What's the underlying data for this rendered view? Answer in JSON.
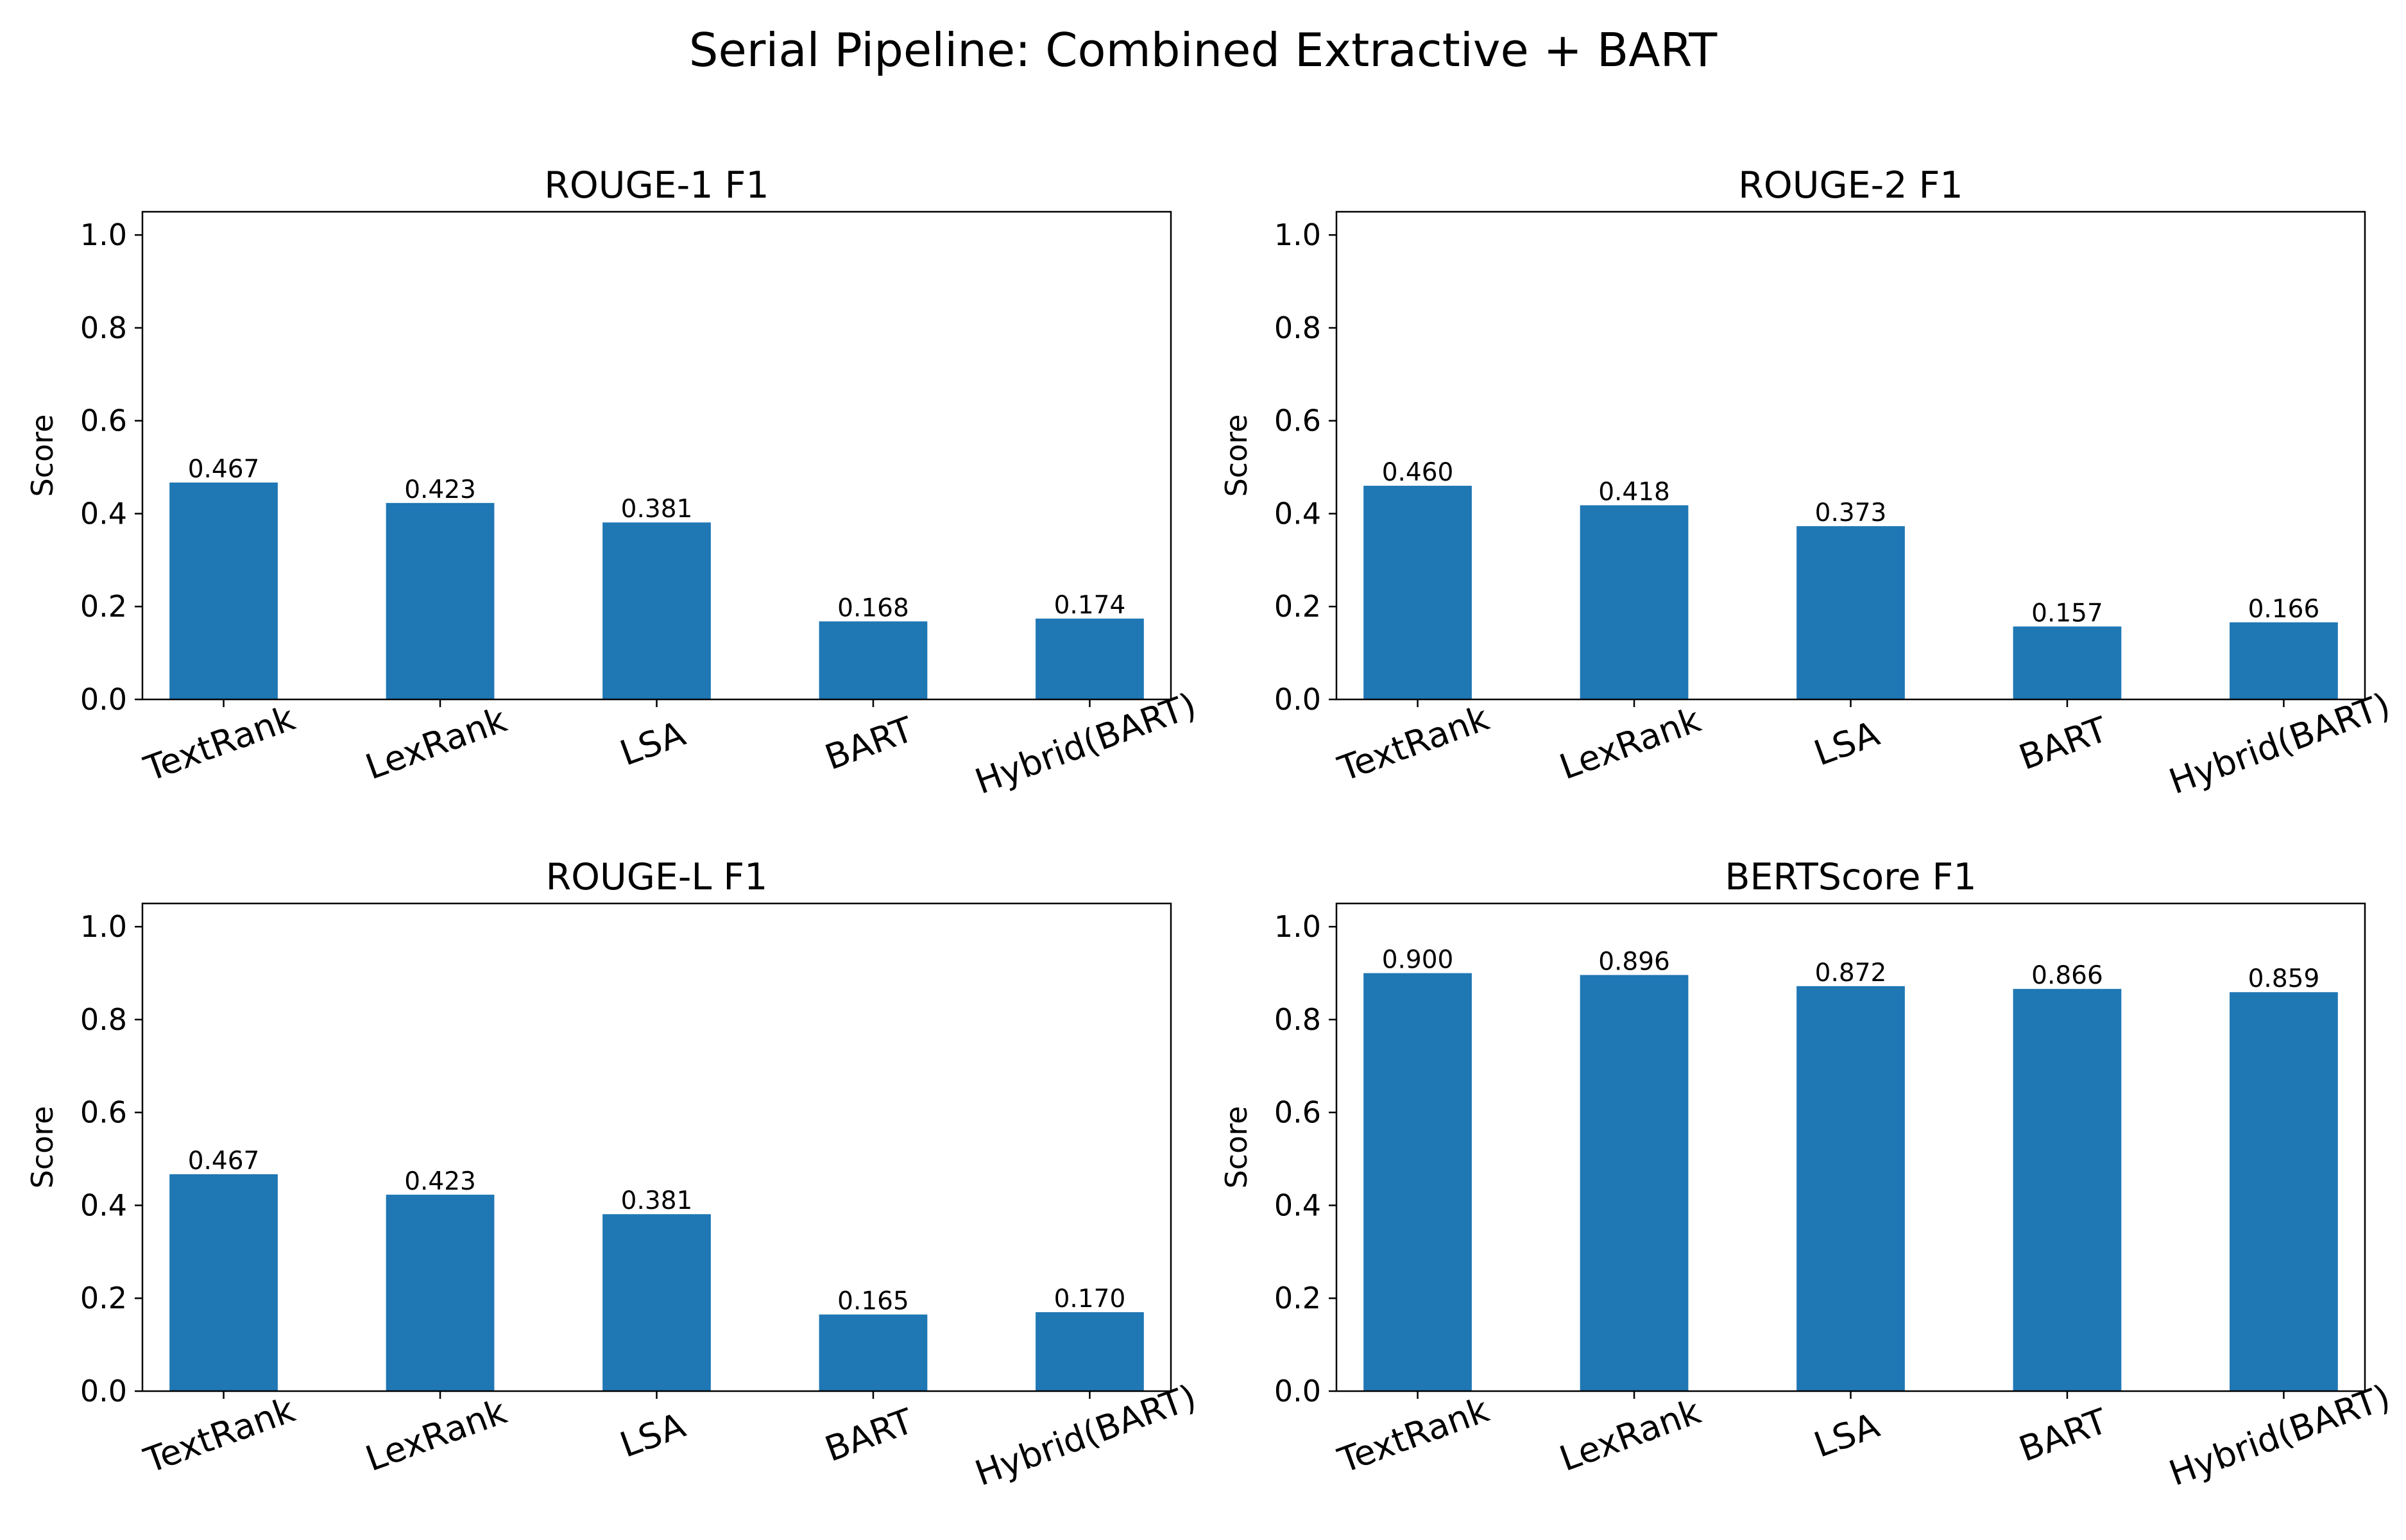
{
  "title": "Serial Pipeline: Combined Extractive + BART",
  "colors": {
    "bar": "#1f77b4",
    "axes": "#000000"
  },
  "chart_data": [
    {
      "type": "bar",
      "title": "ROUGE-1 F1",
      "ylabel": "Score",
      "xlabel": "",
      "categories": [
        "TextRank",
        "LexRank",
        "LSA",
        "BART",
        "Hybrid(BART)"
      ],
      "values": [
        0.467,
        0.423,
        0.381,
        0.168,
        0.174
      ],
      "value_labels": [
        "0.467",
        "0.423",
        "0.381",
        "0.168",
        "0.174"
      ],
      "ylim": [
        0,
        1.05
      ],
      "yticks": [
        "0.0",
        "0.2",
        "0.4",
        "0.6",
        "0.8",
        "1.0"
      ],
      "grid": false
    },
    {
      "type": "bar",
      "title": "ROUGE-2 F1",
      "ylabel": "Score",
      "xlabel": "",
      "categories": [
        "TextRank",
        "LexRank",
        "LSA",
        "BART",
        "Hybrid(BART)"
      ],
      "values": [
        0.46,
        0.418,
        0.373,
        0.157,
        0.166
      ],
      "value_labels": [
        "0.460",
        "0.418",
        "0.373",
        "0.157",
        "0.166"
      ],
      "ylim": [
        0,
        1.05
      ],
      "yticks": [
        "0.0",
        "0.2",
        "0.4",
        "0.6",
        "0.8",
        "1.0"
      ],
      "grid": false
    },
    {
      "type": "bar",
      "title": "ROUGE-L F1",
      "ylabel": "Score",
      "xlabel": "",
      "categories": [
        "TextRank",
        "LexRank",
        "LSA",
        "BART",
        "Hybrid(BART)"
      ],
      "values": [
        0.467,
        0.423,
        0.381,
        0.165,
        0.17
      ],
      "value_labels": [
        "0.467",
        "0.423",
        "0.381",
        "0.165",
        "0.170"
      ],
      "ylim": [
        0,
        1.05
      ],
      "yticks": [
        "0.0",
        "0.2",
        "0.4",
        "0.6",
        "0.8",
        "1.0"
      ],
      "grid": false
    },
    {
      "type": "bar",
      "title": "BERTScore F1",
      "ylabel": "Score",
      "xlabel": "",
      "categories": [
        "TextRank",
        "LexRank",
        "LSA",
        "BART",
        "Hybrid(BART)"
      ],
      "values": [
        0.9,
        0.896,
        0.872,
        0.866,
        0.859
      ],
      "value_labels": [
        "0.900",
        "0.896",
        "0.872",
        "0.866",
        "0.859"
      ],
      "ylim": [
        0,
        1.05
      ],
      "yticks": [
        "0.0",
        "0.2",
        "0.4",
        "0.6",
        "0.8",
        "1.0"
      ],
      "grid": false
    }
  ]
}
